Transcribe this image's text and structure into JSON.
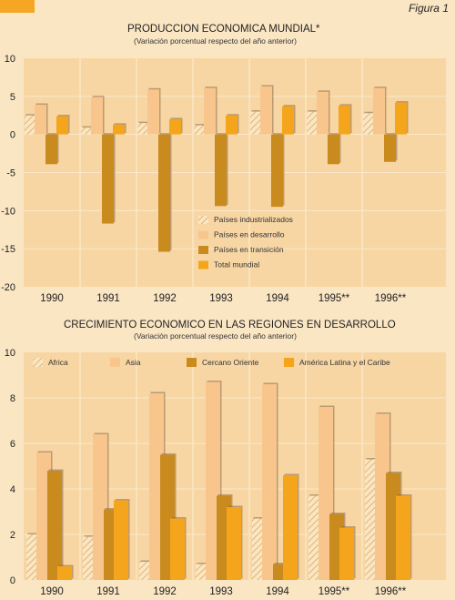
{
  "figure_label": "Figura 1",
  "colors": {
    "page_bg": "#fbe6c4",
    "plot_bg": "#f7d6a3",
    "grid": "#fbe8c8",
    "corner_tab": "#f5a623",
    "industrializados": "#fbe6c4",
    "hatch": "#d9a860",
    "desarrollo": "#f8c68c",
    "transicion": "#c98a1e",
    "total": "#f5a51c",
    "shadow": "#8a6a4a"
  },
  "chart_data": [
    {
      "type": "bar",
      "title": "PRODUCCION ECONOMICA MUNDIAL*",
      "subtitle": "(Variación porcentual respecto del año anterior)",
      "categories": [
        "1990",
        "1991",
        "1992",
        "1993",
        "1994",
        "1995**",
        "1996**"
      ],
      "ylim": [
        -20,
        10
      ],
      "yticks": [
        10,
        5,
        0,
        -5,
        -10,
        -15,
        -20
      ],
      "grid": true,
      "legend_position": "bottom-center",
      "series": [
        {
          "name": "Países industrializados",
          "style": "hatch",
          "values": [
            2.5,
            0.9,
            1.5,
            1.2,
            3.0,
            3.0,
            2.8
          ]
        },
        {
          "name": "Países en desarrollo",
          "style": "desarrollo",
          "values": [
            3.9,
            4.9,
            5.9,
            6.1,
            6.3,
            5.6,
            6.1
          ]
        },
        {
          "name": "Países en transición",
          "style": "transicion",
          "values": [
            -3.9,
            -11.7,
            -15.4,
            -9.4,
            -9.5,
            -3.9,
            -3.6
          ]
        },
        {
          "name": "Total mundial",
          "style": "total",
          "values": [
            2.4,
            1.3,
            2.0,
            2.5,
            3.7,
            3.8,
            4.2
          ]
        }
      ]
    },
    {
      "type": "bar",
      "title": "CRECIMIENTO ECONOMICO EN LAS REGIONES EN DESARROLLO",
      "subtitle": "(Variación porcentual respecto del año anterior)",
      "categories": [
        "1990",
        "1991",
        "1992",
        "1993",
        "1994",
        "1995**",
        "1996**"
      ],
      "ylim": [
        0,
        10
      ],
      "yticks": [
        10,
        8,
        6,
        4,
        2,
        0
      ],
      "grid": true,
      "legend_position": "top",
      "series": [
        {
          "name": "Africa",
          "style": "hatch",
          "values": [
            2.0,
            1.9,
            0.8,
            0.7,
            2.7,
            3.7,
            5.3
          ]
        },
        {
          "name": "Asia",
          "style": "desarrollo",
          "values": [
            5.6,
            6.4,
            8.2,
            8.7,
            8.6,
            7.6,
            7.3
          ]
        },
        {
          "name": "Cercano Oriente",
          "style": "transicion",
          "values": [
            4.8,
            3.1,
            5.5,
            3.7,
            0.7,
            2.9,
            4.7
          ]
        },
        {
          "name": "América Latina y el Caribe",
          "style": "total",
          "values": [
            0.6,
            3.5,
            2.7,
            3.2,
            4.6,
            2.3,
            3.7
          ]
        }
      ]
    }
  ]
}
